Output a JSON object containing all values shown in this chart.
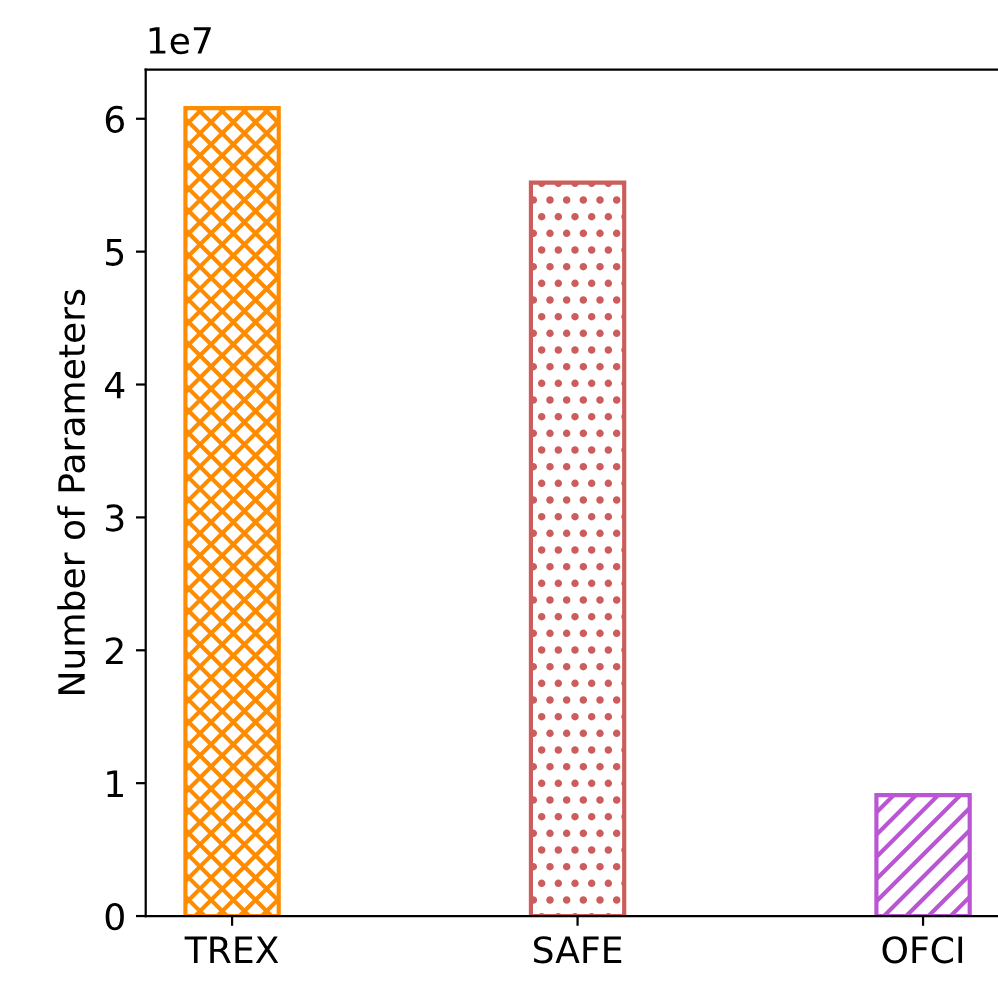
{
  "chart_data": {
    "type": "bar",
    "ylabel": "Number of Parameters",
    "categories": [
      "TREX",
      "SAFE",
      "OFCI"
    ],
    "values": [
      6.08,
      5.52,
      0.91
    ],
    "colors": [
      "#ff8c00",
      "#cd5c5c",
      "#ba55d3"
    ],
    "ylim": [
      0,
      6.37
    ],
    "yticks": [
      0,
      1,
      2,
      3,
      4,
      5,
      6
    ],
    "annotations": [
      "1e7"
    ]
  }
}
